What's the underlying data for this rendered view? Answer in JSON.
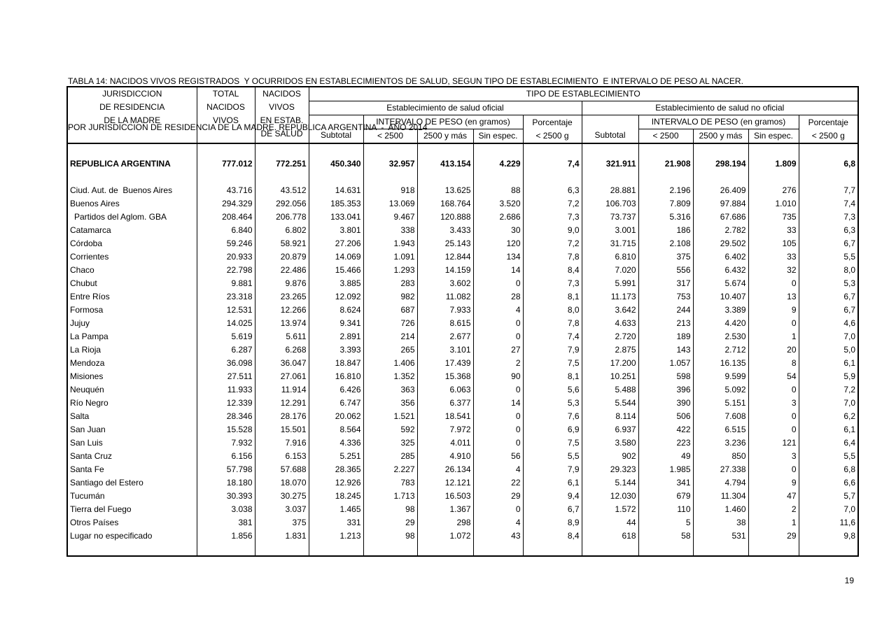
{
  "title": {
    "line1": "TABLA 14: NACIDOS VIVOS REGISTRADOS  Y OCURRIDOS EN ESTABLECIMIENTOS DE SALUD, SEGUN TIPO DE ESTABLECIMIENTO  E INTERVALO DE PESO AL NACER.",
    "line2": "POR JURISDICCION DE RESIDENCIA DE LA MADRE. REPUBLICA ARGENTINA  -  AÑO 2014"
  },
  "page": {
    "number": "19"
  },
  "table": {
    "header": {
      "jurisdiccion": "JURISDICCION\nDE RESIDENCIA\nDE LA MADRE",
      "total_nacidos": "TOTAL\nNACIDOS\nVIVOS",
      "nacidos_estab": "NACIDOS\nVIVOS\nEN ESTAB.\nDE SALUD",
      "tipo": "TIPO DE ESTABLECIMIENTO",
      "oficial": "Establecimiento de salud oficial",
      "no_oficial": "Establecimiento de salud no oficial",
      "subtotal": "Subtotal",
      "intervalo": "INTERVALO DE PESO (en gramos)",
      "porcentaje_oficial": "Porcentaje\n< 2500 g",
      "porcentaje_no_oficial": "Porcentaje\n< 2500  g",
      "lt_2500": "< 2500",
      "gte_2500": "2500 y más",
      "sin_espec": "Sin espec."
    },
    "rows": [
      {
        "name": "REPUBLICA ARGENTINA",
        "bold": true,
        "gap_after": true,
        "values": [
          "777.012",
          "772.251",
          "450.340",
          "32.957",
          "413.154",
          "4.229",
          "7,4",
          "321.911",
          "21.908",
          "298.194",
          "1.809",
          "6,8"
        ]
      },
      {
        "name": "Ciud. Aut. de  Buenos Aires",
        "values": [
          "43.716",
          "43.512",
          "14.631",
          "918",
          "13.625",
          "88",
          "6,3",
          "28.881",
          "2.196",
          "26.409",
          "276",
          "7,7"
        ]
      },
      {
        "name": "Buenos Aires",
        "values": [
          "294.329",
          "292.056",
          "185.353",
          "13.069",
          "168.764",
          "3.520",
          "7,2",
          "106.703",
          "7.809",
          "97.884",
          "1.010",
          "7,4"
        ]
      },
      {
        "name": "Partidos del Aglom. GBA",
        "indent": true,
        "values": [
          "208.464",
          "206.778",
          "133.041",
          "9.467",
          "120.888",
          "2.686",
          "7,3",
          "73.737",
          "5.316",
          "67.686",
          "735",
          "7,3"
        ]
      },
      {
        "name": "Catamarca",
        "values": [
          "6.840",
          "6.802",
          "3.801",
          "338",
          "3.433",
          "30",
          "9,0",
          "3.001",
          "186",
          "2.782",
          "33",
          "6,3"
        ]
      },
      {
        "name": "Córdoba",
        "values": [
          "59.246",
          "58.921",
          "27.206",
          "1.943",
          "25.143",
          "120",
          "7,2",
          "31.715",
          "2.108",
          "29.502",
          "105",
          "6,7"
        ]
      },
      {
        "name": "Corrientes",
        "values": [
          "20.933",
          "20.879",
          "14.069",
          "1.091",
          "12.844",
          "134",
          "7,8",
          "6.810",
          "375",
          "6.402",
          "33",
          "5,5"
        ]
      },
      {
        "name": "Chaco",
        "values": [
          "22.798",
          "22.486",
          "15.466",
          "1.293",
          "14.159",
          "14",
          "8,4",
          "7.020",
          "556",
          "6.432",
          "32",
          "8,0"
        ]
      },
      {
        "name": "Chubut",
        "values": [
          "9.881",
          "9.876",
          "3.885",
          "283",
          "3.602",
          "0",
          "7,3",
          "5.991",
          "317",
          "5.674",
          "0",
          "5,3"
        ]
      },
      {
        "name": "Entre Ríos",
        "values": [
          "23.318",
          "23.265",
          "12.092",
          "982",
          "11.082",
          "28",
          "8,1",
          "11.173",
          "753",
          "10.407",
          "13",
          "6,7"
        ]
      },
      {
        "name": "Formosa",
        "values": [
          "12.531",
          "12.266",
          "8.624",
          "687",
          "7.933",
          "4",
          "8,0",
          "3.642",
          "244",
          "3.389",
          "9",
          "6,7"
        ]
      },
      {
        "name": "Jujuy",
        "values": [
          "14.025",
          "13.974",
          "9.341",
          "726",
          "8.615",
          "0",
          "7,8",
          "4.633",
          "213",
          "4.420",
          "0",
          "4,6"
        ]
      },
      {
        "name": "La Pampa",
        "values": [
          "5.619",
          "5.611",
          "2.891",
          "214",
          "2.677",
          "0",
          "7,4",
          "2.720",
          "189",
          "2.530",
          "1",
          "7,0"
        ]
      },
      {
        "name": "La Rioja",
        "values": [
          "6.287",
          "6.268",
          "3.393",
          "265",
          "3.101",
          "27",
          "7,9",
          "2.875",
          "143",
          "2.712",
          "20",
          "5,0"
        ]
      },
      {
        "name": "Mendoza",
        "values": [
          "36.098",
          "36.047",
          "18.847",
          "1.406",
          "17.439",
          "2",
          "7,5",
          "17.200",
          "1.057",
          "16.135",
          "8",
          "6,1"
        ]
      },
      {
        "name": "Misiones",
        "values": [
          "27.511",
          "27.061",
          "16.810",
          "1.352",
          "15.368",
          "90",
          "8,1",
          "10.251",
          "598",
          "9.599",
          "54",
          "5,9"
        ]
      },
      {
        "name": "Neuquén",
        "values": [
          "11.933",
          "11.914",
          "6.426",
          "363",
          "6.063",
          "0",
          "5,6",
          "5.488",
          "396",
          "5.092",
          "0",
          "7,2"
        ]
      },
      {
        "name": "Río Negro",
        "values": [
          "12.339",
          "12.291",
          "6.747",
          "356",
          "6.377",
          "14",
          "5,3",
          "5.544",
          "390",
          "5.151",
          "3",
          "7,0"
        ]
      },
      {
        "name": "Salta",
        "values": [
          "28.346",
          "28.176",
          "20.062",
          "1.521",
          "18.541",
          "0",
          "7,6",
          "8.114",
          "506",
          "7.608",
          "0",
          "6,2"
        ]
      },
      {
        "name": "San Juan",
        "values": [
          "15.528",
          "15.501",
          "8.564",
          "592",
          "7.972",
          "0",
          "6,9",
          "6.937",
          "422",
          "6.515",
          "0",
          "6,1"
        ]
      },
      {
        "name": "San Luis",
        "values": [
          "7.932",
          "7.916",
          "4.336",
          "325",
          "4.011",
          "0",
          "7,5",
          "3.580",
          "223",
          "3.236",
          "121",
          "6,4"
        ]
      },
      {
        "name": "Santa Cruz",
        "values": [
          "6.156",
          "6.153",
          "5.251",
          "285",
          "4.910",
          "56",
          "5,5",
          "902",
          "49",
          "850",
          "3",
          "5,5"
        ]
      },
      {
        "name": "Santa Fe",
        "values": [
          "57.798",
          "57.688",
          "28.365",
          "2.227",
          "26.134",
          "4",
          "7,9",
          "29.323",
          "1.985",
          "27.338",
          "0",
          "6,8"
        ]
      },
      {
        "name": "Santiago del Estero",
        "values": [
          "18.180",
          "18.070",
          "12.926",
          "783",
          "12.121",
          "22",
          "6,1",
          "5.144",
          "341",
          "4.794",
          "9",
          "6,6"
        ]
      },
      {
        "name": "Tucumán",
        "values": [
          "30.393",
          "30.275",
          "18.245",
          "1.713",
          "16.503",
          "29",
          "9,4",
          "12.030",
          "679",
          "11.304",
          "47",
          "5,7"
        ]
      },
      {
        "name": "Tierra del Fuego",
        "values": [
          "3.038",
          "3.037",
          "1.465",
          "98",
          "1.367",
          "0",
          "6,7",
          "1.572",
          "110",
          "1.460",
          "2",
          "7,0"
        ]
      },
      {
        "name": "Otros Países",
        "values": [
          "381",
          "375",
          "331",
          "29",
          "298",
          "4",
          "8,9",
          "44",
          "5",
          "38",
          "1",
          "11,6"
        ]
      },
      {
        "name": "Lugar no especificado",
        "values": [
          "1.856",
          "1.831",
          "1.213",
          "98",
          "1.072",
          "43",
          "8,4",
          "618",
          "58",
          "531",
          "29",
          "9,8"
        ]
      }
    ]
  }
}
